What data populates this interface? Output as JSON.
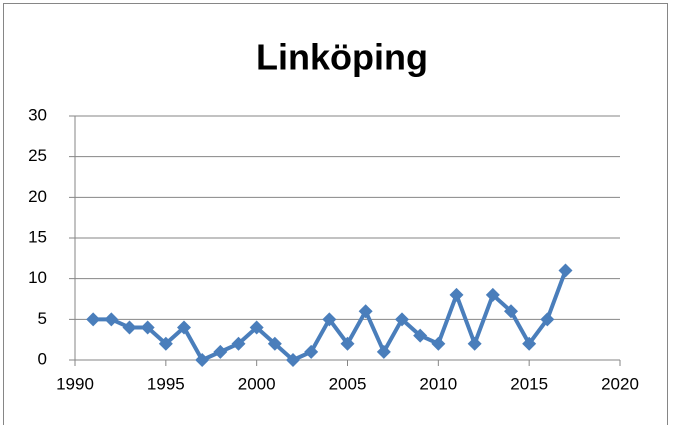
{
  "chart_data": {
    "type": "line",
    "title": "Linköping",
    "x": [
      1991,
      1992,
      1993,
      1994,
      1995,
      1996,
      1997,
      1998,
      1999,
      2000,
      2001,
      2002,
      2003,
      2004,
      2005,
      2006,
      2007,
      2008,
      2009,
      2010,
      2011,
      2012,
      2013,
      2014,
      2015,
      2016,
      2017
    ],
    "series": [
      {
        "color": "#4a7ebb",
        "values": [
          5,
          5,
          4,
          4,
          2,
          4,
          0,
          1,
          2,
          4,
          2,
          0,
          1,
          5,
          2,
          6,
          1,
          5,
          3,
          2,
          8,
          2,
          8,
          6,
          2,
          5,
          11
        ]
      }
    ],
    "xlim": [
      1990,
      2020
    ],
    "xticks": [
      1990,
      1995,
      2000,
      2005,
      2010,
      2015,
      2020
    ],
    "ylim": [
      0,
      30
    ],
    "yticks": [
      0,
      5,
      10,
      15,
      20,
      25,
      30
    ],
    "grid": true
  }
}
